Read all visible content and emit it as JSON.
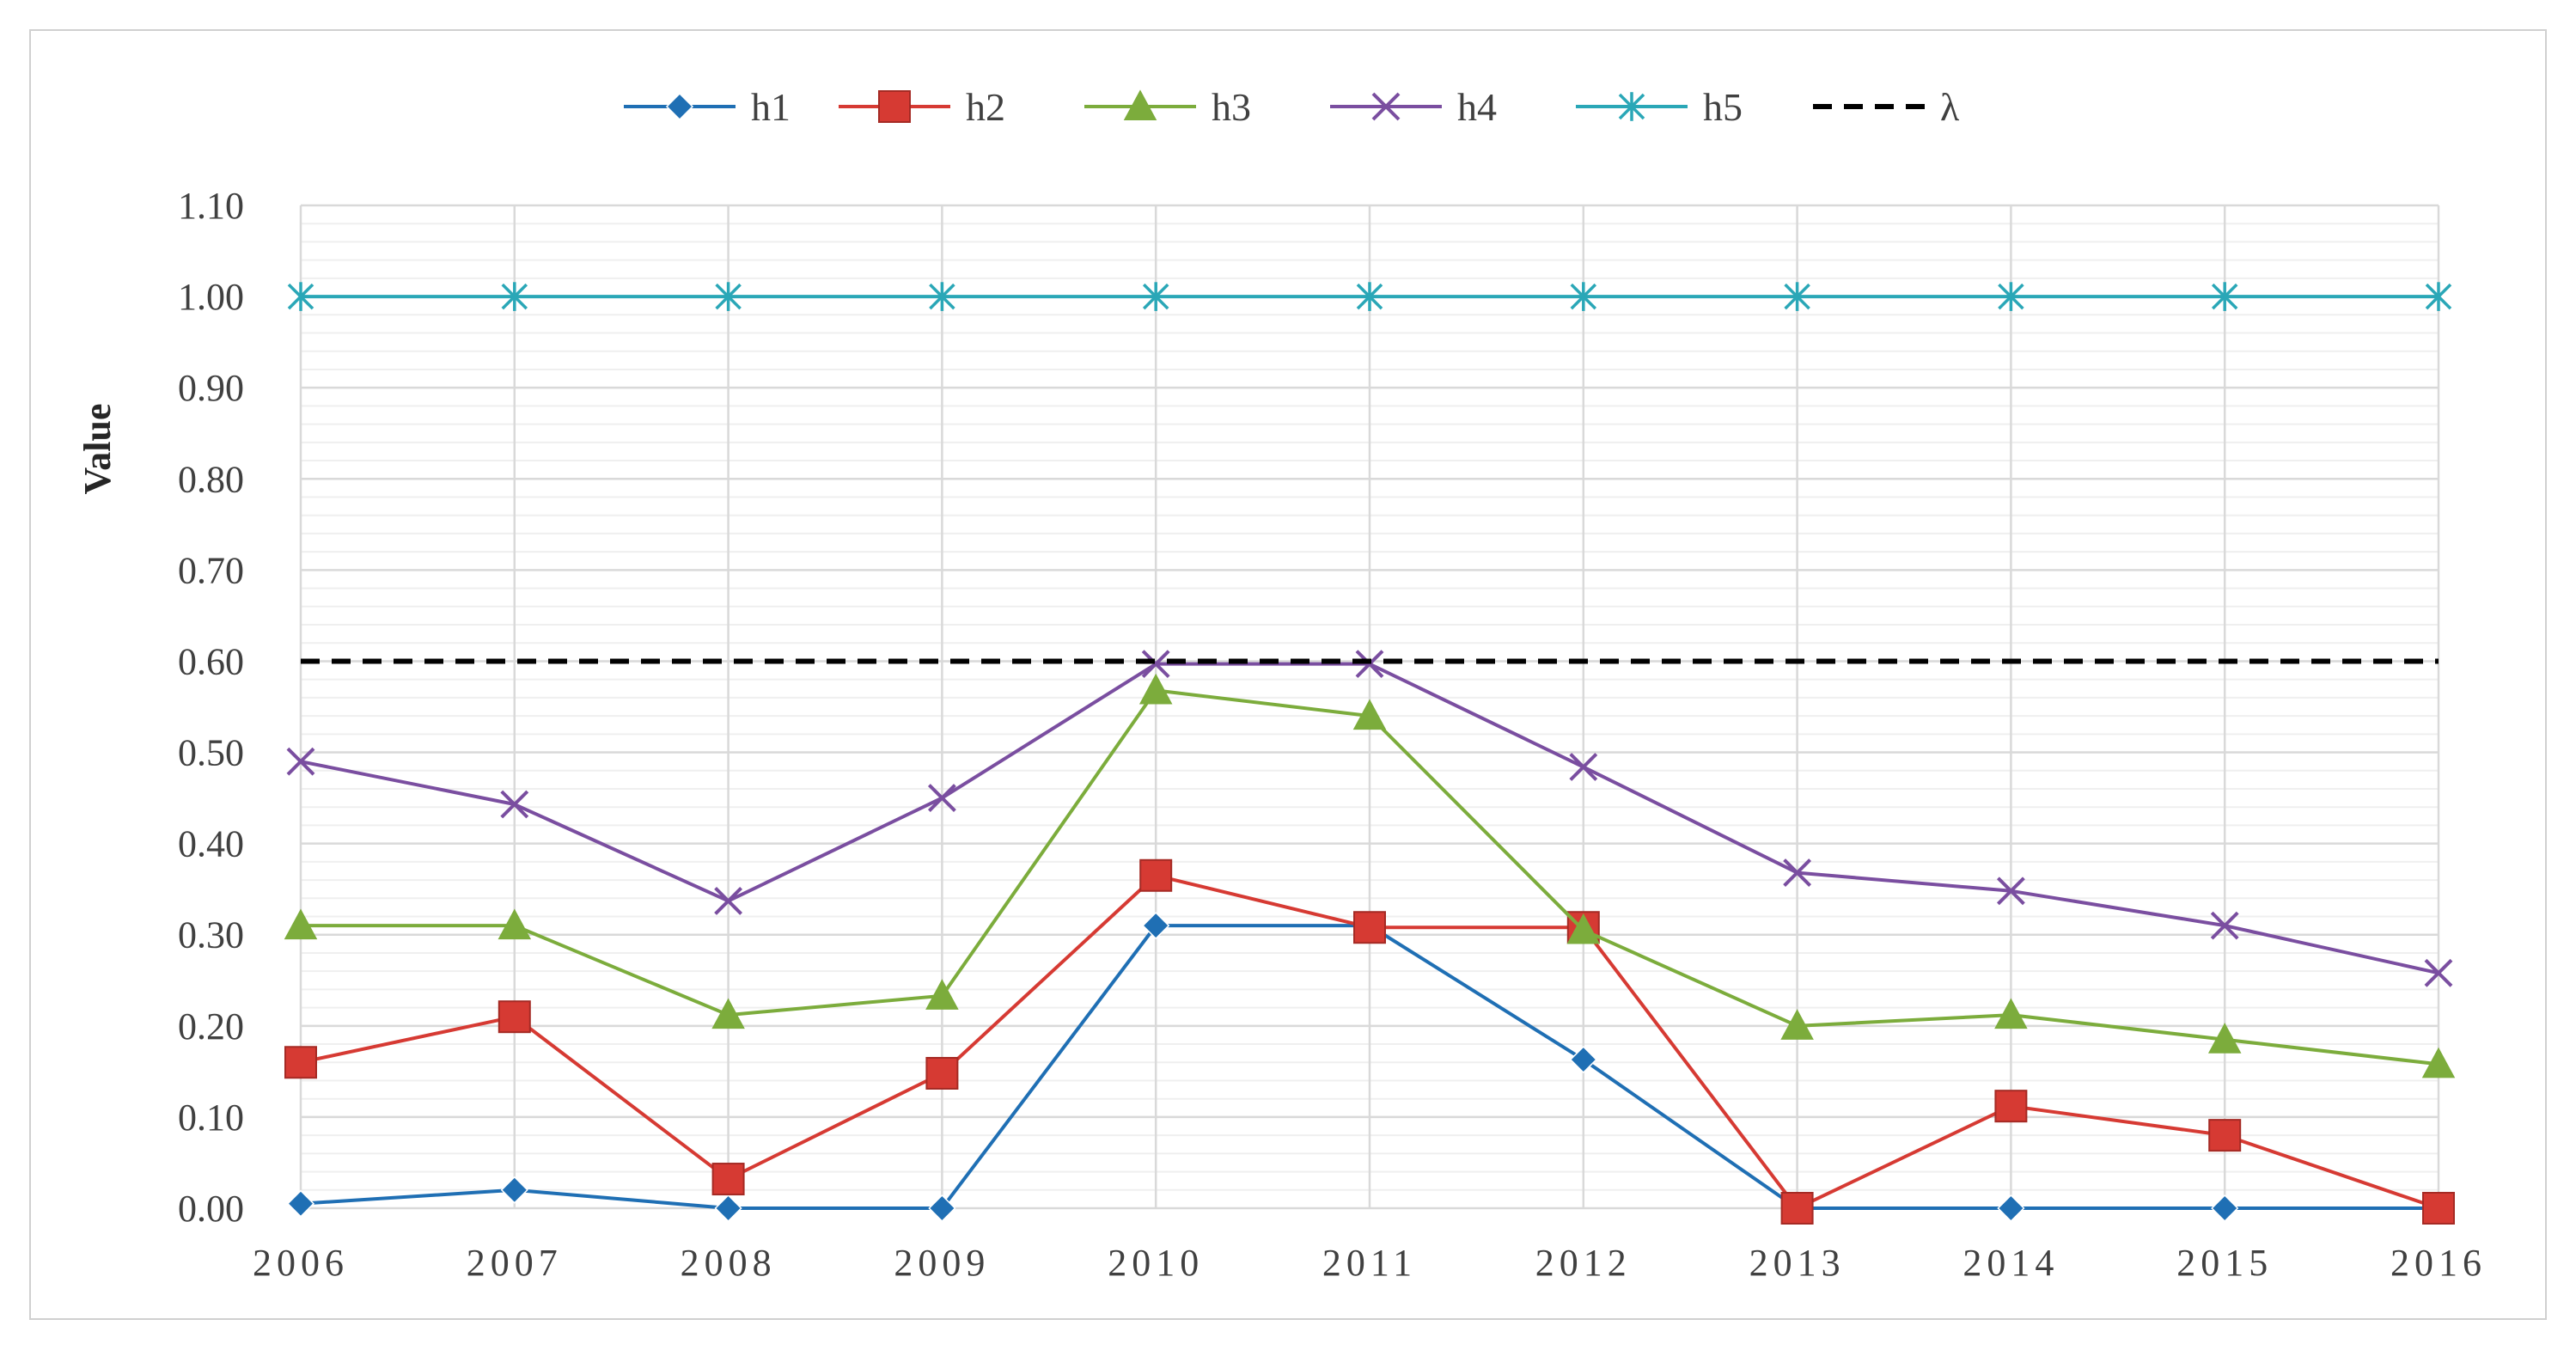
{
  "chart_data": {
    "type": "line",
    "title": "",
    "xlabel": "",
    "ylabel": "Value",
    "ylim": [
      0,
      1.1
    ],
    "y_major_step": 0.1,
    "y_minor_step": 0.02,
    "x": [
      "2006",
      "2007",
      "2008",
      "2009",
      "2010",
      "2011",
      "2012",
      "2013",
      "2014",
      "2015",
      "2016"
    ],
    "y_ticks": [
      "0.00",
      "0.10",
      "0.20",
      "0.30",
      "0.40",
      "0.50",
      "0.60",
      "0.70",
      "0.80",
      "0.90",
      "1.00",
      "1.10"
    ],
    "grid": true,
    "legend_position": "top-center",
    "series": [
      {
        "name": "h1",
        "color": "#1f6fb4",
        "marker": "diamond",
        "values": [
          0.005,
          0.02,
          0.0,
          0.0,
          0.31,
          0.31,
          0.163,
          0.0,
          0.0,
          0.0,
          0.0
        ]
      },
      {
        "name": "h2",
        "color": "#d63a33",
        "marker": "square",
        "values": [
          0.16,
          0.21,
          0.032,
          0.148,
          0.365,
          0.308,
          0.308,
          0.0,
          0.112,
          0.08,
          0.0
        ]
      },
      {
        "name": "h3",
        "color": "#7cac3c",
        "marker": "triangle",
        "values": [
          0.31,
          0.31,
          0.212,
          0.233,
          0.568,
          0.54,
          0.305,
          0.2,
          0.212,
          0.185,
          0.158
        ]
      },
      {
        "name": "h4",
        "color": "#7a4ea0",
        "marker": "x",
        "values": [
          0.49,
          0.443,
          0.337,
          0.45,
          0.597,
          0.597,
          0.484,
          0.368,
          0.348,
          0.31,
          0.258
        ]
      },
      {
        "name": "h5",
        "color": "#2aa7b7",
        "marker": "asterisk",
        "values": [
          1.0,
          1.0,
          1.0,
          1.0,
          1.0,
          1.0,
          1.0,
          1.0,
          1.0,
          1.0,
          1.0
        ]
      },
      {
        "name": "λ",
        "color": "#000000",
        "marker": "none",
        "dashed": true,
        "values": [
          0.6,
          0.6,
          0.6,
          0.6,
          0.6,
          0.6,
          0.6,
          0.6,
          0.6,
          0.6,
          0.6
        ]
      }
    ]
  }
}
